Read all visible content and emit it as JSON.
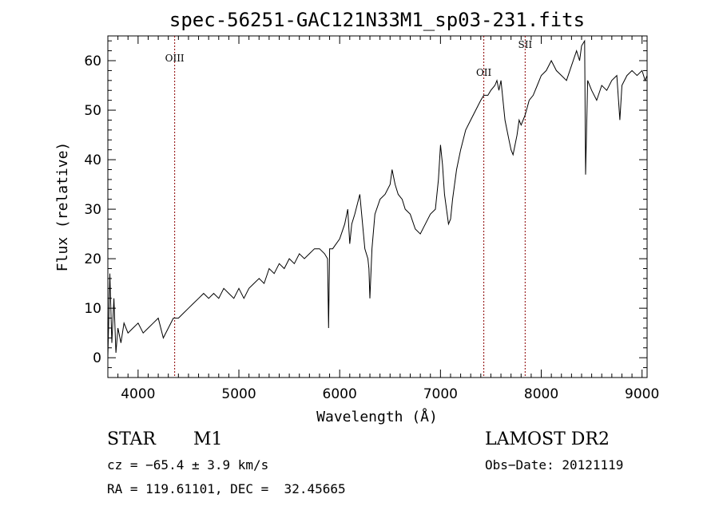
{
  "chart_data": {
    "type": "line",
    "title": "spec-56251-GAC121N33M1_sp03-231.fits",
    "xlabel": "Wavelength (Å)",
    "ylabel": "Flux (relative)",
    "xlim": [
      3700,
      9050
    ],
    "ylim": [
      -4,
      65
    ],
    "xticks": [
      4000,
      5000,
      6000,
      7000,
      8000,
      9000
    ],
    "yticks": [
      0,
      10,
      20,
      30,
      40,
      50,
      60
    ],
    "grid": false,
    "line_color": "#000000",
    "marker_color": "#8b0000",
    "lines": [
      {
        "label": "OIII",
        "x": 4363
      },
      {
        "label": "OII",
        "x": 7430
      },
      {
        "label": "SII",
        "x": 7840
      }
    ],
    "series": [
      {
        "x": [
          3700,
          3720,
          3740,
          3760,
          3780,
          3800,
          3830,
          3860,
          3900,
          3950,
          4000,
          4050,
          4100,
          4150,
          4200,
          4250,
          4300,
          4350,
          4400,
          4450,
          4500,
          4550,
          4600,
          4650,
          4700,
          4750,
          4800,
          4850,
          4900,
          4950,
          5000,
          5050,
          5100,
          5150,
          5200,
          5250,
          5300,
          5350,
          5400,
          5450,
          5500,
          5550,
          5600,
          5650,
          5700,
          5750,
          5800,
          5850,
          5880,
          5890,
          5900,
          5930,
          6000,
          6050,
          6080,
          6100,
          6120,
          6150,
          6200,
          6250,
          6280,
          6290,
          6300,
          6320,
          6350,
          6400,
          6450,
          6500,
          6520,
          6550,
          6580,
          6620,
          6650,
          6700,
          6750,
          6800,
          6850,
          6900,
          6950,
          6980,
          7000,
          7020,
          7040,
          7060,
          7080,
          7100,
          7120,
          7140,
          7160,
          7200,
          7250,
          7300,
          7350,
          7400,
          7430,
          7470,
          7500,
          7540,
          7560,
          7580,
          7600,
          7620,
          7640,
          7660,
          7680,
          7700,
          7720,
          7740,
          7760,
          7780,
          7800,
          7840,
          7880,
          7920,
          7960,
          8000,
          8050,
          8100,
          8150,
          8200,
          8250,
          8300,
          8350,
          8380,
          8400,
          8430,
          8440,
          8460,
          8500,
          8550,
          8600,
          8650,
          8700,
          8750,
          8780,
          8800,
          8850,
          8900,
          8950,
          9000,
          9030,
          9050
        ],
        "y": [
          0,
          17,
          3,
          12,
          1,
          6,
          3,
          7,
          5,
          6,
          7,
          5,
          6,
          7,
          8,
          4,
          6,
          8,
          8,
          9,
          10,
          11,
          12,
          13,
          12,
          13,
          12,
          14,
          13,
          12,
          14,
          12,
          14,
          15,
          16,
          15,
          18,
          17,
          19,
          18,
          20,
          19,
          21,
          20,
          21,
          22,
          22,
          21,
          20,
          6,
          22,
          22,
          24,
          27,
          30,
          23,
          27,
          29,
          33,
          22,
          20,
          18,
          12,
          22,
          29,
          32,
          33,
          35,
          38,
          35,
          33,
          32,
          30,
          29,
          26,
          25,
          27,
          29,
          30,
          36,
          43,
          39,
          33,
          30,
          27,
          28,
          32,
          35,
          38,
          42,
          46,
          48,
          50,
          52,
          53,
          53,
          54,
          55,
          56,
          54,
          56,
          52,
          48,
          46,
          44,
          42,
          41,
          43,
          45,
          48,
          47,
          49,
          52,
          53,
          55,
          57,
          58,
          60,
          58,
          57,
          56,
          59,
          62,
          60,
          63,
          64,
          37,
          56,
          54,
          52,
          55,
          54,
          56,
          57,
          48,
          55,
          57,
          58,
          57,
          58,
          56,
          57
        ]
      }
    ]
  },
  "info": {
    "object_type": "STAR",
    "subclass": "M1",
    "survey": "LAMOST DR2",
    "cz": "cz = −65.4 ± 3.9 km/s",
    "obs_date": "Obs−Date: 20121119",
    "coords": "RA = 119.61101, DEC =  32.45665"
  }
}
